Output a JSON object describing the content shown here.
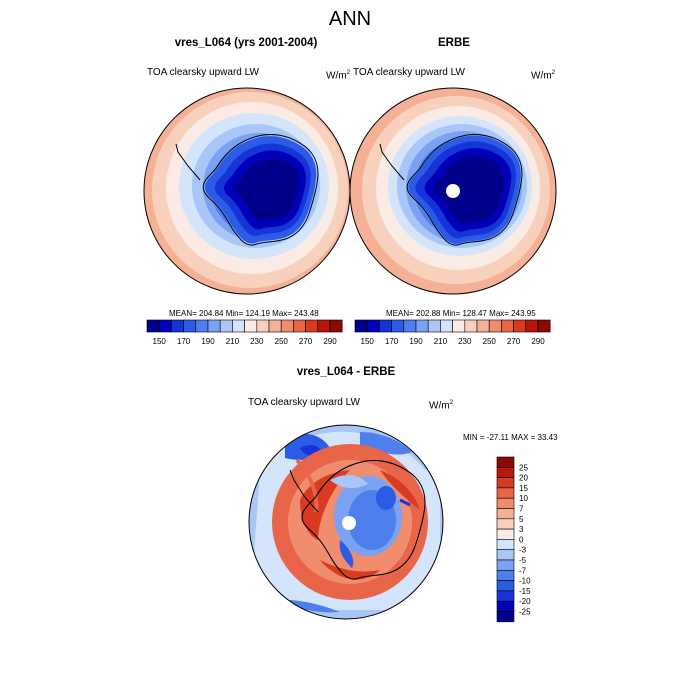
{
  "title": "ANN",
  "panels": [
    {
      "title": "vres_L064 (yrs 2001-2004)",
      "left_label": "TOA clearsky upward LW",
      "unit_base": "W/m",
      "unit_exp": "2",
      "stats": "MEAN= 204.84  Min= 124.19  Max= 243.48"
    },
    {
      "title": "ERBE",
      "left_label": "TOA clearsky upward LW",
      "unit_base": "W/m",
      "unit_exp": "2",
      "stats": "MEAN= 202.88  Min= 128.47  Max= 243.95"
    }
  ],
  "colorbar_top": {
    "tick_labels": [
      "150",
      "170",
      "190",
      "210",
      "230",
      "250",
      "270",
      "290"
    ],
    "colors": [
      "#00008a",
      "#0000b8",
      "#1535d8",
      "#2c5ce6",
      "#4f7fec",
      "#7ba2f2",
      "#a8c6f7",
      "#d3e4fb",
      "#faece4",
      "#f8d1bd",
      "#f5b196",
      "#f18d6f",
      "#e9654a",
      "#d83a22",
      "#b8170c",
      "#8a0a04"
    ]
  },
  "diff_panel": {
    "title": "vres_L064 - ERBE",
    "left_label": "TOA clearsky upward LW",
    "unit_base": "W/m",
    "unit_exp": "2",
    "stats": "MIN = -27.11  MAX =  33.43",
    "colorbar": {
      "levels": [
        "25",
        "20",
        "15",
        "10",
        "7",
        "5",
        "3",
        "0",
        "-3",
        "-5",
        "-7",
        "-10",
        "-15",
        "-20",
        "-25"
      ],
      "colors": [
        "#8a0a04",
        "#b8170c",
        "#d83a22",
        "#e9654a",
        "#f18d6f",
        "#f5b196",
        "#f8d1bd",
        "#faece4",
        "#d3e4fb",
        "#a8c6f7",
        "#7ba2f2",
        "#4f7fec",
        "#2c5ce6",
        "#1535d8",
        "#0000b8",
        "#00008a"
      ]
    }
  }
}
